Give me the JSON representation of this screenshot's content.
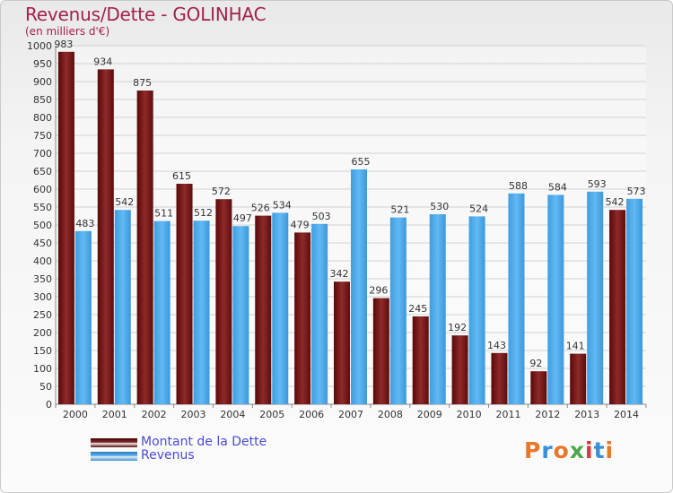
{
  "header": {
    "title": "Revenus/Dette - GOLINHAC",
    "subtitle": "(en milliers d'€)"
  },
  "legend": {
    "items": [
      {
        "label": "Montant de la Dette",
        "color": "#7a1616"
      },
      {
        "label": "Revenus",
        "color": "#3ea0e4"
      }
    ]
  },
  "logo": {
    "text": "Proxiti",
    "colors": [
      "#e8772a",
      "#3a8fd6",
      "#e8772a",
      "#4aa84a",
      "#d63a3a",
      "#3a8fd6",
      "#e8772a"
    ]
  },
  "chart_data": {
    "type": "bar",
    "categories": [
      "2000",
      "2001",
      "2002",
      "2003",
      "2004",
      "2005",
      "2006",
      "2007",
      "2008",
      "2009",
      "2010",
      "2011",
      "2012",
      "2013",
      "2014"
    ],
    "series": [
      {
        "name": "Montant de la Dette",
        "color": "#7a1616",
        "values": [
          983,
          934,
          875,
          615,
          572,
          526,
          479,
          342,
          296,
          245,
          192,
          143,
          92,
          141,
          542
        ]
      },
      {
        "name": "Revenus",
        "color": "#3ea0e4",
        "values": [
          483,
          542,
          511,
          512,
          497,
          534,
          503,
          655,
          521,
          530,
          524,
          588,
          584,
          593,
          573
        ]
      }
    ],
    "yticks": [
      0,
      50,
      100,
      150,
      200,
      250,
      300,
      350,
      400,
      450,
      500,
      550,
      600,
      650,
      700,
      750,
      800,
      850,
      900,
      950,
      1000
    ],
    "ylim": [
      0,
      1000
    ],
    "grid": true,
    "legend_position": "bottom-left"
  }
}
